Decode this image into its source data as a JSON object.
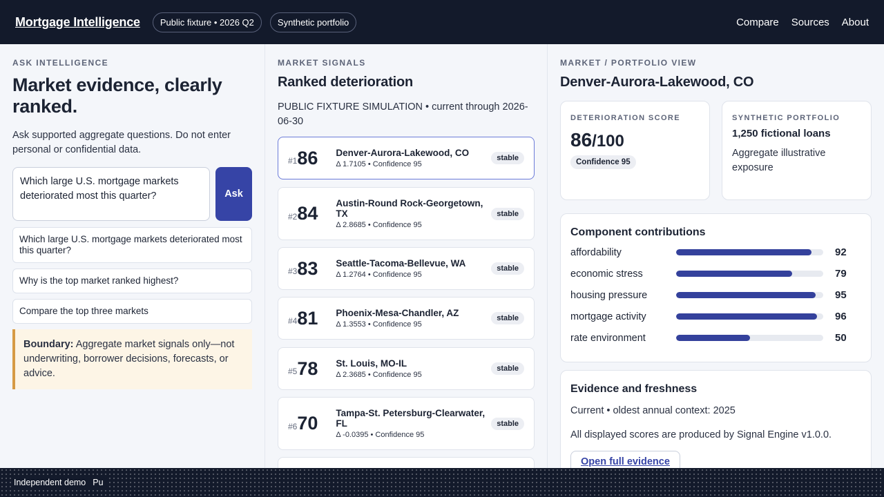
{
  "header": {
    "brand": "Mortgage Intelligence",
    "pills": [
      "Public fixture • 2026 Q2",
      "Synthetic portfolio"
    ],
    "nav": [
      "Compare",
      "Sources",
      "About"
    ]
  },
  "ask": {
    "eyebrow": "ASK INTELLIGENCE",
    "title": "Market evidence, clearly ranked.",
    "lead": "Ask supported aggregate questions. Do not enter personal or confidential data.",
    "input_value": "Which large U.S. mortgage markets deteriorated most this quarter?",
    "ask_label": "Ask",
    "suggestions": [
      "Which large U.S. mortgage markets deteriorated most this quarter?",
      "Why is the top market ranked highest?",
      "Compare the top three markets"
    ],
    "boundary_label": "Boundary:",
    "boundary_text": " Aggregate market signals only—not underwriting, borrower decisions, forecasts, or advice."
  },
  "signals": {
    "eyebrow": "MARKET SIGNALS",
    "title": "Ranked deterioration",
    "note": "PUBLIC FIXTURE SIMULATION • current through 2026-06-30",
    "markets": [
      {
        "rank": "#1",
        "score": "86",
        "name": "Denver-Aurora-Lakewood, CO",
        "meta": "Δ 1.7105 • Confidence 95",
        "status": "stable"
      },
      {
        "rank": "#2",
        "score": "84",
        "name": "Austin-Round Rock-Georgetown, TX",
        "meta": "Δ 2.8685 • Confidence 95",
        "status": "stable"
      },
      {
        "rank": "#3",
        "score": "83",
        "name": "Seattle-Tacoma-Bellevue, WA",
        "meta": "Δ 1.2764 • Confidence 95",
        "status": "stable"
      },
      {
        "rank": "#4",
        "score": "81",
        "name": "Phoenix-Mesa-Chandler, AZ",
        "meta": "Δ 1.3553 • Confidence 95",
        "status": "stable"
      },
      {
        "rank": "#5",
        "score": "78",
        "name": "St. Louis, MO-IL",
        "meta": "Δ 2.3685 • Confidence 95",
        "status": "stable"
      },
      {
        "rank": "#6",
        "score": "70",
        "name": "Tampa-St. Petersburg-Clearwater, FL",
        "meta": "Δ -0.0395 • Confidence 95",
        "status": "stable"
      }
    ]
  },
  "view": {
    "eyebrow": "MARKET / PORTFOLIO VIEW",
    "title": "Denver-Aurora-Lakewood, CO",
    "score_label": "DETERIORATION SCORE",
    "score": "86",
    "score_max": "/100",
    "confidence": "Confidence 95",
    "portfolio_label": "SYNTHETIC PORTFOLIO",
    "portfolio_loans": "1,250 fictional loans",
    "portfolio_sub": "Aggregate illustrative exposure",
    "components_title": "Component contributions",
    "components": [
      {
        "label": "affordability",
        "value": 92
      },
      {
        "label": "economic stress",
        "value": 79
      },
      {
        "label": "housing pressure",
        "value": 95
      },
      {
        "label": "mortgage activity",
        "value": 96
      },
      {
        "label": "rate environment",
        "value": 50
      }
    ],
    "evidence_title": "Evidence and freshness",
    "evidence_line1": "Current • oldest annual context: 2025",
    "evidence_line2": "All displayed scores are produced by Signal Engine v1.0.0.",
    "evidence_button": "Open full evidence"
  },
  "footer": {
    "demo": "Independent demo",
    "partial": "Pu"
  },
  "colors": {
    "header_bg": "#131a2b",
    "accent": "#3644a6",
    "bar_fill": "#34419c",
    "boundary_bg": "#fdf5e6",
    "boundary_border": "#d69a44"
  }
}
